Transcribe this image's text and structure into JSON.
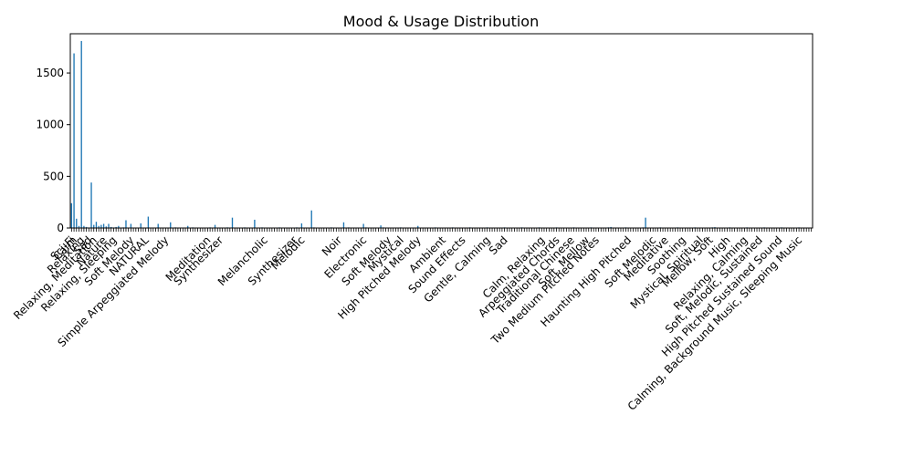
{
  "chart_data": {
    "type": "bar",
    "title": "Mood & Usage Distribution",
    "xlabel": "",
    "ylabel": "",
    "ylim": [
      0,
      1880
    ],
    "yticks": [
      0,
      500,
      1000,
      1500
    ],
    "bar_color": "#1f77b4",
    "grid": false,
    "legend": "none",
    "category_count": 300,
    "values_head": [
      240,
      1690,
      90,
      20,
      1810,
      20,
      10,
      5,
      440,
      30,
      60,
      20,
      30,
      40,
      15,
      40,
      10,
      5,
      10,
      20
    ],
    "peaks": [
      {
        "index": 22,
        "value": 75
      },
      {
        "index": 24,
        "value": 40
      },
      {
        "index": 28,
        "value": 45
      },
      {
        "index": 31,
        "value": 110
      },
      {
        "index": 35,
        "value": 40
      },
      {
        "index": 40,
        "value": 55
      },
      {
        "index": 47,
        "value": 20
      },
      {
        "index": 58,
        "value": 30
      },
      {
        "index": 65,
        "value": 100
      },
      {
        "index": 74,
        "value": 80
      },
      {
        "index": 93,
        "value": 45
      },
      {
        "index": 97,
        "value": 170
      },
      {
        "index": 110,
        "value": 55
      },
      {
        "index": 118,
        "value": 40
      },
      {
        "index": 125,
        "value": 25
      },
      {
        "index": 140,
        "value": 20
      },
      {
        "index": 218,
        "value": 10
      },
      {
        "index": 232,
        "value": 100
      },
      {
        "index": 260,
        "value": 8
      }
    ],
    "visible_labels": [
      {
        "index": 0,
        "text": "Sci-Fi"
      },
      {
        "index": 1,
        "text": "Calm"
      },
      {
        "index": 4,
        "text": "Relaxing"
      },
      {
        "index": 7,
        "text": "Sad"
      },
      {
        "index": 9,
        "text": "Relaxing, Meditation"
      },
      {
        "index": 13,
        "text": "Nature"
      },
      {
        "index": 17,
        "text": "Relaxing, Sleeping"
      },
      {
        "index": 24,
        "text": "Soft Melody"
      },
      {
        "index": 30,
        "text": "NATURAL"
      },
      {
        "index": 38,
        "text": "Simple Arpeggiated Melody"
      },
      {
        "index": 55,
        "text": "Meditation"
      },
      {
        "index": 60,
        "text": "Synthesizer"
      },
      {
        "index": 78,
        "text": "Melancholic"
      },
      {
        "index": 90,
        "text": "Synthesizer"
      },
      {
        "index": 93,
        "text": "Melodic"
      },
      {
        "index": 108,
        "text": "Noir"
      },
      {
        "index": 118,
        "text": "Electronic"
      },
      {
        "index": 128,
        "text": "Soft Melody"
      },
      {
        "index": 133,
        "text": "Mystical"
      },
      {
        "index": 140,
        "text": "High Pitched Melody"
      },
      {
        "index": 150,
        "text": "Ambient"
      },
      {
        "index": 158,
        "text": "Sound Effects"
      },
      {
        "index": 168,
        "text": "Gentle, Calming"
      },
      {
        "index": 175,
        "text": "Sad"
      },
      {
        "index": 190,
        "text": "Calm, Relaxing"
      },
      {
        "index": 196,
        "text": "Arpeggiated Chords"
      },
      {
        "index": 202,
        "text": "Traditional Chinese"
      },
      {
        "index": 208,
        "text": "Soft, Mellow"
      },
      {
        "index": 212,
        "text": "Two Medium Pitched Notes"
      },
      {
        "index": 225,
        "text": "Haunting High Pitched"
      },
      {
        "index": 235,
        "text": "Soft Melodic"
      },
      {
        "index": 240,
        "text": "Meditative"
      },
      {
        "index": 247,
        "text": "Soothing"
      },
      {
        "index": 254,
        "text": "Mystical, Spiritual"
      },
      {
        "index": 258,
        "text": "Mellow, Soft"
      },
      {
        "index": 265,
        "text": "High"
      },
      {
        "index": 272,
        "text": "Relaxing, Calming"
      },
      {
        "index": 278,
        "text": "Soft, Melodic, Sustained"
      },
      {
        "index": 286,
        "text": "High Pitched Sustained Sound"
      },
      {
        "index": 294,
        "text": "Calming, Background Music, Sleeping Music"
      }
    ]
  }
}
